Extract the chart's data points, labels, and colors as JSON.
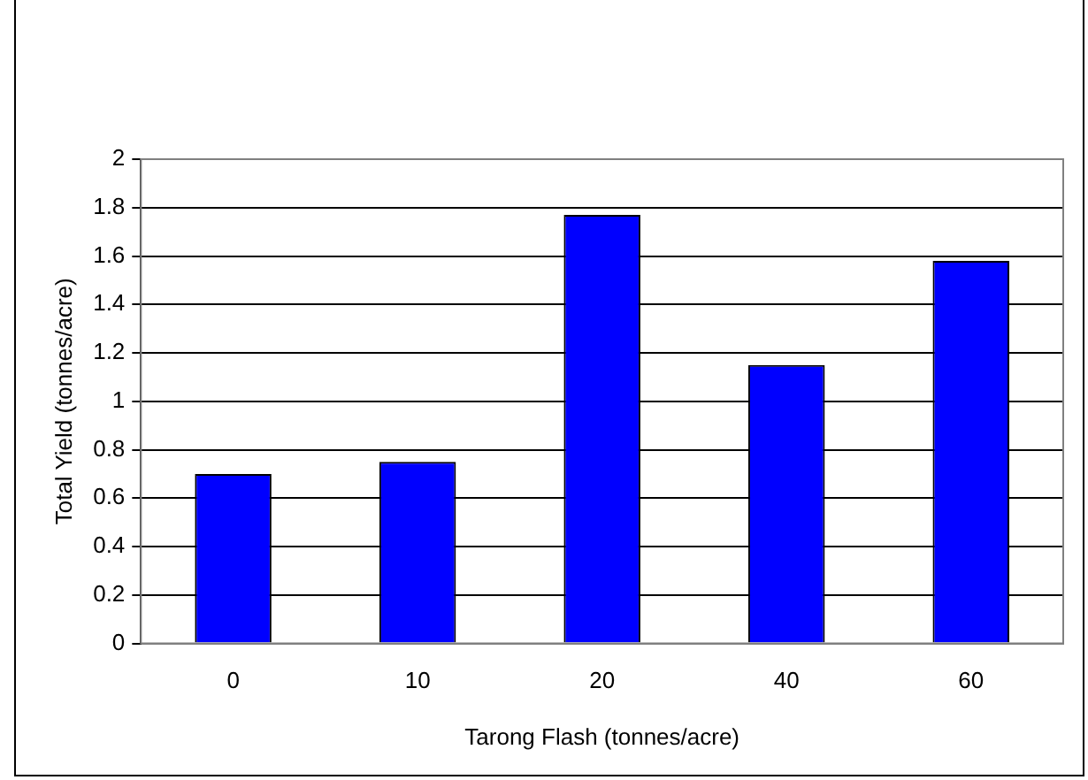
{
  "chart_data": {
    "type": "bar",
    "xlabel": "Tarong Flash (tonnes/acre)",
    "ylabel": "Total Yield (tonnes/acre)",
    "categories": [
      "0",
      "10",
      "20",
      "40",
      "60"
    ],
    "values": [
      0.7,
      0.75,
      1.77,
      1.15,
      1.58
    ],
    "color": "#0000ff",
    "ylim": [
      0,
      2
    ],
    "yticks": [
      0,
      0.2,
      0.4,
      0.6,
      0.8,
      1,
      1.2,
      1.4,
      1.6,
      1.8,
      2
    ],
    "grid": "y",
    "legend": false
  }
}
